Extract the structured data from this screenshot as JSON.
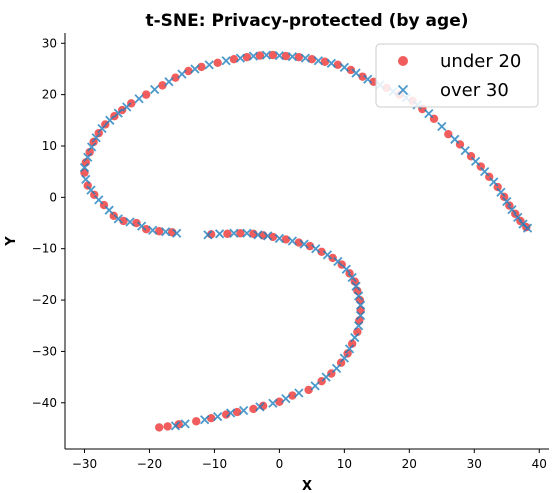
{
  "chart_data": {
    "type": "scatter",
    "title": "t-SNE: Privacy-protected (by age)",
    "xlabel": "X",
    "ylabel": "Y",
    "xlim": [
      -33,
      41.5
    ],
    "ylim": [
      -49,
      32
    ],
    "xticks": [
      -30,
      -20,
      -10,
      0,
      10,
      20,
      30,
      40
    ],
    "yticks": [
      -40,
      -30,
      -20,
      -10,
      0,
      10,
      20,
      30
    ],
    "legend_position": "top-right",
    "series": [
      {
        "name": "under 20",
        "marker": "circle",
        "color": "#ee3333",
        "points": [
          [
            -18.5,
            -44.8
          ],
          [
            -17.2,
            -44.6
          ],
          [
            -15.5,
            -44.2
          ],
          [
            -12.8,
            -43.6
          ],
          [
            -10.5,
            -43.0
          ],
          [
            -8.2,
            -42.3
          ],
          [
            -6.5,
            -41.8
          ],
          [
            -4.0,
            -41.2
          ],
          [
            -2.5,
            -40.6
          ],
          [
            0.0,
            -39.8
          ],
          [
            2.0,
            -38.6
          ],
          [
            4.5,
            -37.5
          ],
          [
            6.5,
            -35.8
          ],
          [
            8.0,
            -34.3
          ],
          [
            9.5,
            -32.2
          ],
          [
            10.5,
            -30.4
          ],
          [
            11.2,
            -28.5
          ],
          [
            12.0,
            -26.2
          ],
          [
            12.3,
            -24.0
          ],
          [
            12.5,
            -22.0
          ],
          [
            12.4,
            -20.0
          ],
          [
            12.0,
            -18.2
          ],
          [
            11.6,
            -16.4
          ],
          [
            10.8,
            -14.8
          ],
          [
            9.6,
            -13.1
          ],
          [
            8.2,
            -11.8
          ],
          [
            6.5,
            -10.6
          ],
          [
            4.7,
            -9.5
          ],
          [
            3.0,
            -8.8
          ],
          [
            1.0,
            -8.2
          ],
          [
            -1.0,
            -7.7
          ],
          [
            -2.5,
            -7.4
          ],
          [
            -4.0,
            -7.1
          ],
          [
            -6.0,
            -7.0
          ],
          [
            -8.0,
            -7.1
          ],
          [
            -10.5,
            -7.2
          ],
          [
            -16.5,
            -6.8
          ],
          [
            -18.5,
            -6.6
          ],
          [
            -20.5,
            -6.2
          ],
          [
            -22.0,
            -5.0
          ],
          [
            -24.0,
            -4.6
          ],
          [
            -25.5,
            -3.6
          ],
          [
            -27.0,
            -1.5
          ],
          [
            -28.5,
            0.5
          ],
          [
            -29.5,
            2.3
          ],
          [
            -30.0,
            4.8
          ],
          [
            -29.8,
            6.8
          ],
          [
            -29.2,
            8.8
          ],
          [
            -28.6,
            10.8
          ],
          [
            -27.8,
            12.5
          ],
          [
            -26.8,
            14.2
          ],
          [
            -25.4,
            15.8
          ],
          [
            -24.2,
            17.0
          ],
          [
            -22.8,
            18.3
          ],
          [
            -20.5,
            20.0
          ],
          [
            -18.0,
            21.8
          ],
          [
            -16.0,
            23.3
          ],
          [
            -14.0,
            24.6
          ],
          [
            -12.0,
            25.4
          ],
          [
            -9.5,
            26.2
          ],
          [
            -7.0,
            26.9
          ],
          [
            -5.0,
            27.3
          ],
          [
            -3.0,
            27.6
          ],
          [
            -1.0,
            27.7
          ],
          [
            1.0,
            27.5
          ],
          [
            3.0,
            27.3
          ],
          [
            5.0,
            26.9
          ],
          [
            7.0,
            26.4
          ],
          [
            9.0,
            25.8
          ],
          [
            11.0,
            24.8
          ],
          [
            12.8,
            23.5
          ],
          [
            14.5,
            22.5
          ],
          [
            16.5,
            21.3
          ],
          [
            18.5,
            20.0
          ],
          [
            20.5,
            18.8
          ],
          [
            22.0,
            17.2
          ],
          [
            23.8,
            15.3
          ],
          [
            26.0,
            12.3
          ],
          [
            27.8,
            10.3
          ],
          [
            29.5,
            8.0
          ],
          [
            31.0,
            6.0
          ],
          [
            32.3,
            4.0
          ],
          [
            33.6,
            2.0
          ],
          [
            34.6,
            0.1
          ],
          [
            35.4,
            -1.6
          ],
          [
            36.3,
            -3.2
          ],
          [
            37.1,
            -4.6
          ],
          [
            38.0,
            -5.8
          ]
        ]
      },
      {
        "name": "over 30",
        "marker": "x",
        "color": "#1f7fbf",
        "points": [
          [
            -16.0,
            -44.5
          ],
          [
            -14.5,
            -44.1
          ],
          [
            -11.5,
            -43.3
          ],
          [
            -9.5,
            -42.7
          ],
          [
            -7.5,
            -42.0
          ],
          [
            -5.5,
            -41.5
          ],
          [
            -3.0,
            -40.8
          ],
          [
            -1.0,
            -40.1
          ],
          [
            1.0,
            -39.2
          ],
          [
            3.0,
            -38.1
          ],
          [
            5.5,
            -36.7
          ],
          [
            7.2,
            -35.0
          ],
          [
            8.8,
            -33.3
          ],
          [
            10.0,
            -31.3
          ],
          [
            10.8,
            -29.5
          ],
          [
            11.6,
            -27.3
          ],
          [
            12.2,
            -25.0
          ],
          [
            12.5,
            -23.0
          ],
          [
            12.5,
            -21.0
          ],
          [
            12.2,
            -19.2
          ],
          [
            11.8,
            -17.3
          ],
          [
            11.2,
            -15.6
          ],
          [
            10.3,
            -14.0
          ],
          [
            9.0,
            -12.5
          ],
          [
            7.4,
            -11.2
          ],
          [
            5.6,
            -10.0
          ],
          [
            3.8,
            -9.1
          ],
          [
            2.0,
            -8.5
          ],
          [
            0.0,
            -8.0
          ],
          [
            -1.8,
            -7.5
          ],
          [
            -3.3,
            -7.3
          ],
          [
            -5.0,
            -7.0
          ],
          [
            -7.0,
            -7.0
          ],
          [
            -9.2,
            -7.1
          ],
          [
            -11.0,
            -7.3
          ],
          [
            -15.8,
            -7.0
          ],
          [
            -17.5,
            -6.7
          ],
          [
            -19.5,
            -6.4
          ],
          [
            -21.2,
            -5.6
          ],
          [
            -23.0,
            -4.8
          ],
          [
            -24.8,
            -4.2
          ],
          [
            -26.2,
            -2.5
          ],
          [
            -27.8,
            -0.5
          ],
          [
            -29.0,
            1.4
          ],
          [
            -29.8,
            3.5
          ],
          [
            -30.0,
            5.8
          ],
          [
            -29.5,
            7.8
          ],
          [
            -28.9,
            9.8
          ],
          [
            -28.2,
            11.6
          ],
          [
            -27.3,
            13.4
          ],
          [
            -26.1,
            15.0
          ],
          [
            -24.8,
            16.4
          ],
          [
            -23.5,
            17.6
          ],
          [
            -21.6,
            19.2
          ],
          [
            -19.2,
            21.0
          ],
          [
            -17.0,
            22.5
          ],
          [
            -15.0,
            24.0
          ],
          [
            -13.0,
            25.0
          ],
          [
            -10.8,
            25.8
          ],
          [
            -8.2,
            26.6
          ],
          [
            -6.0,
            27.1
          ],
          [
            -4.0,
            27.5
          ],
          [
            -2.0,
            27.7
          ],
          [
            0.0,
            27.6
          ],
          [
            2.0,
            27.4
          ],
          [
            4.0,
            27.1
          ],
          [
            6.0,
            26.6
          ],
          [
            8.0,
            26.1
          ],
          [
            10.0,
            25.3
          ],
          [
            11.8,
            24.2
          ],
          [
            13.6,
            23.0
          ],
          [
            15.5,
            21.9
          ],
          [
            17.5,
            20.6
          ],
          [
            19.5,
            19.4
          ],
          [
            21.2,
            18.0
          ],
          [
            23.0,
            16.3
          ],
          [
            25.0,
            13.8
          ],
          [
            27.0,
            11.3
          ],
          [
            28.6,
            9.1
          ],
          [
            30.2,
            7.0
          ],
          [
            31.6,
            5.0
          ],
          [
            33.0,
            3.0
          ],
          [
            34.1,
            1.0
          ],
          [
            35.0,
            -0.8
          ],
          [
            35.8,
            -2.4
          ],
          [
            36.7,
            -3.9
          ],
          [
            37.5,
            -5.2
          ],
          [
            38.2,
            -6.0
          ]
        ]
      }
    ]
  }
}
